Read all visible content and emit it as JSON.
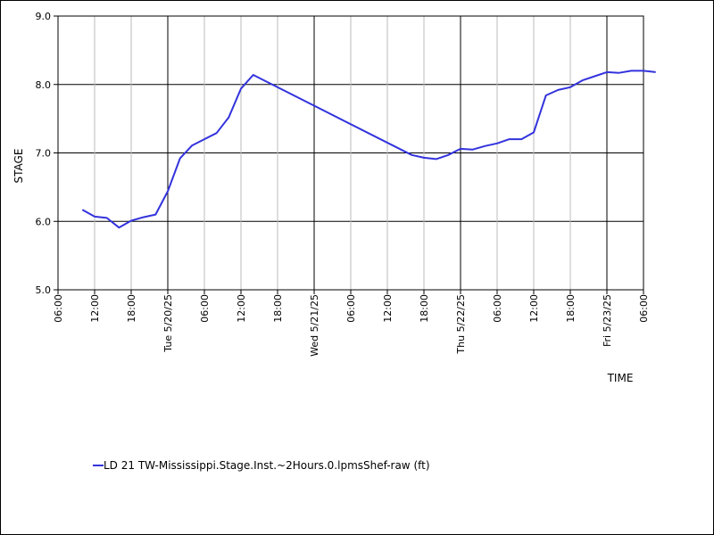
{
  "chart_data": {
    "type": "line",
    "xlabel": "TIME",
    "ylabel": "STAGE",
    "ylim": [
      5.0,
      9.0
    ],
    "y_ticks": [
      "5.0",
      "6.0",
      "7.0",
      "8.0",
      "9.0"
    ],
    "x_range": [
      "2025-05-19T06:00",
      "2025-05-23T06:00"
    ],
    "x_ticks": [
      {
        "t": "2025-05-19T06:00",
        "label": "06:00"
      },
      {
        "t": "2025-05-19T12:00",
        "label": "12:00"
      },
      {
        "t": "2025-05-19T18:00",
        "label": "18:00"
      },
      {
        "t": "2025-05-20T00:00",
        "label": "Tue 5/20/25"
      },
      {
        "t": "2025-05-20T06:00",
        "label": "06:00"
      },
      {
        "t": "2025-05-20T12:00",
        "label": "12:00"
      },
      {
        "t": "2025-05-20T18:00",
        "label": "18:00"
      },
      {
        "t": "2025-05-21T00:00",
        "label": "Wed 5/21/25"
      },
      {
        "t": "2025-05-21T06:00",
        "label": "06:00"
      },
      {
        "t": "2025-05-21T12:00",
        "label": "12:00"
      },
      {
        "t": "2025-05-21T18:00",
        "label": "18:00"
      },
      {
        "t": "2025-05-22T00:00",
        "label": "Thu 5/22/25"
      },
      {
        "t": "2025-05-22T06:00",
        "label": "06:00"
      },
      {
        "t": "2025-05-22T12:00",
        "label": "12:00"
      },
      {
        "t": "2025-05-22T18:00",
        "label": "18:00"
      },
      {
        "t": "2025-05-23T00:00",
        "label": "Fri 5/23/25"
      },
      {
        "t": "2025-05-23T06:00",
        "label": "06:00"
      }
    ],
    "grid": true,
    "legend_position": "bottom-left",
    "series": [
      {
        "name": "LD 21 TW-Mississippi.Stage.Inst.~2Hours.0.lpmsShef-raw (ft)",
        "color": "#3333dd",
        "points": [
          {
            "x": "2025-05-19T10:00",
            "y": 6.17
          },
          {
            "x": "2025-05-19T12:00",
            "y": 6.07
          },
          {
            "x": "2025-05-19T14:00",
            "y": 6.05
          },
          {
            "x": "2025-05-19T16:00",
            "y": 5.91
          },
          {
            "x": "2025-05-19T18:00",
            "y": 6.01
          },
          {
            "x": "2025-05-19T20:00",
            "y": 6.06
          },
          {
            "x": "2025-05-19T22:00",
            "y": 6.1
          },
          {
            "x": "2025-05-20T00:00",
            "y": 6.44
          },
          {
            "x": "2025-05-20T02:00",
            "y": 6.92
          },
          {
            "x": "2025-05-20T04:00",
            "y": 7.11
          },
          {
            "x": "2025-05-20T06:00",
            "y": 7.2
          },
          {
            "x": "2025-05-20T08:00",
            "y": 7.29
          },
          {
            "x": "2025-05-20T10:00",
            "y": 7.52
          },
          {
            "x": "2025-05-20T12:00",
            "y": 7.94
          },
          {
            "x": "2025-05-20T14:00",
            "y": 8.14
          },
          {
            "x": "2025-05-21T16:00",
            "y": 6.97
          },
          {
            "x": "2025-05-21T18:00",
            "y": 6.93
          },
          {
            "x": "2025-05-21T20:00",
            "y": 6.91
          },
          {
            "x": "2025-05-21T22:00",
            "y": 6.97
          },
          {
            "x": "2025-05-22T00:00",
            "y": 7.06
          },
          {
            "x": "2025-05-22T02:00",
            "y": 7.05
          },
          {
            "x": "2025-05-22T04:00",
            "y": 7.1
          },
          {
            "x": "2025-05-22T06:00",
            "y": 7.14
          },
          {
            "x": "2025-05-22T08:00",
            "y": 7.2
          },
          {
            "x": "2025-05-22T10:00",
            "y": 7.2
          },
          {
            "x": "2025-05-22T12:00",
            "y": 7.3
          },
          {
            "x": "2025-05-22T14:00",
            "y": 7.84
          },
          {
            "x": "2025-05-22T16:00",
            "y": 7.92
          },
          {
            "x": "2025-05-22T18:00",
            "y": 7.96
          },
          {
            "x": "2025-05-22T20:00",
            "y": 8.06
          },
          {
            "x": "2025-05-22T22:00",
            "y": 8.12
          },
          {
            "x": "2025-05-23T00:00",
            "y": 8.18
          },
          {
            "x": "2025-05-23T02:00",
            "y": 8.17
          },
          {
            "x": "2025-05-23T04:00",
            "y": 8.2
          },
          {
            "x": "2025-05-23T06:00",
            "y": 8.2
          },
          {
            "x": "2025-05-23T08:00",
            "y": 8.18
          }
        ]
      }
    ]
  }
}
